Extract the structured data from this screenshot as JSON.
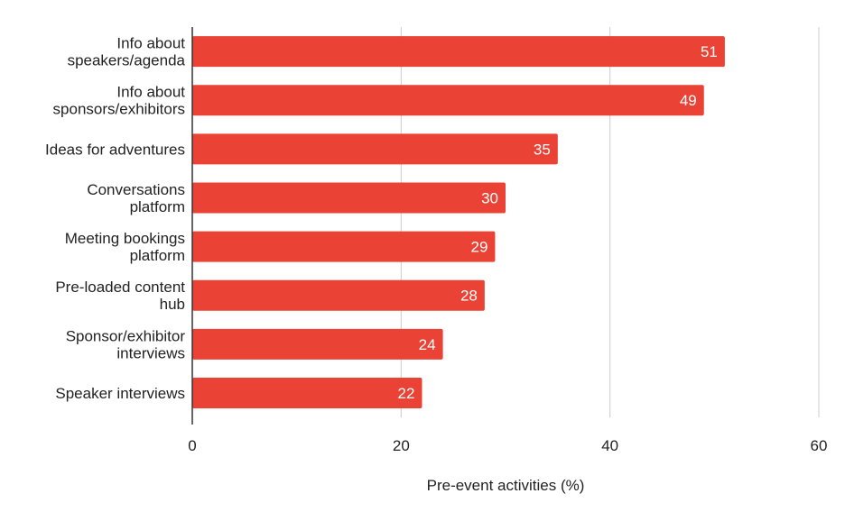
{
  "chart_data": {
    "type": "bar",
    "orientation": "horizontal",
    "categories": [
      [
        "Info about",
        "speakers/agenda"
      ],
      [
        "Info about",
        "sponsors/exhibitors"
      ],
      [
        "Ideas for adventures"
      ],
      [
        "Conversations",
        "platform"
      ],
      [
        "Meeting bookings",
        "platform"
      ],
      [
        "Pre-loaded content",
        "hub"
      ],
      [
        "Sponsor/exhibitor",
        "interviews"
      ],
      [
        "Speaker interviews"
      ]
    ],
    "values": [
      51,
      49,
      35,
      30,
      29,
      28,
      24,
      22
    ],
    "xlabel": "Pre-event activities (%)",
    "ylabel": "",
    "xlim": [
      0,
      60
    ],
    "ticks": [
      0,
      20,
      40,
      60
    ],
    "grid": true,
    "bar_color": "#ea4335",
    "data_label_color": "#ffffff"
  }
}
